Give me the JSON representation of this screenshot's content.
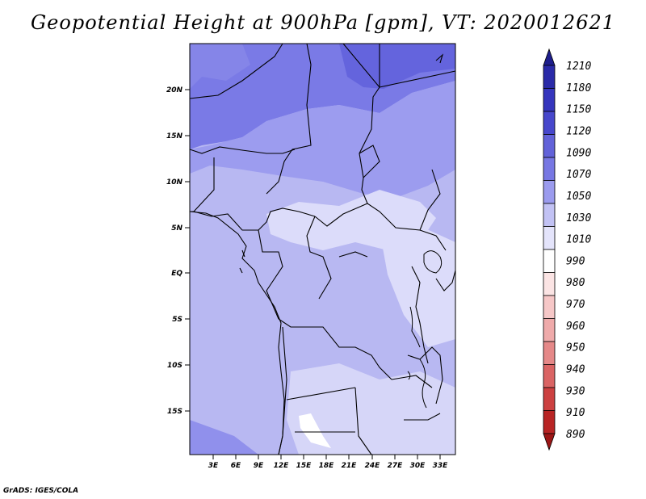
{
  "title": "Geopotential Height at 900hPa [gpm], VT: 2020012621",
  "credit": "GrADS: IGES/COLA",
  "map": {
    "lat_labels": [
      "20N",
      "15N",
      "10N",
      "5N",
      "EQ",
      "5S",
      "10S",
      "15S"
    ],
    "lon_labels": [
      "3E",
      "6E",
      "9E",
      "12E",
      "15E",
      "18E",
      "21E",
      "24E",
      "27E",
      "30E",
      "33E"
    ]
  },
  "colorbar": {
    "labels": [
      "1210",
      "1180",
      "1150",
      "1120",
      "1090",
      "1070",
      "1050",
      "1030",
      "1010",
      "990",
      "980",
      "970",
      "960",
      "950",
      "940",
      "930",
      "910",
      "890"
    ],
    "colors": [
      "#1e1e8c",
      "#2a2aa8",
      "#3535bd",
      "#4747cc",
      "#6262d9",
      "#7777e3",
      "#9b9bee",
      "#c2c2f4",
      "#e4e4fb",
      "#ffffff",
      "#fbe4e4",
      "#f6c7c7",
      "#efaaaa",
      "#e58888",
      "#da6464",
      "#cc4040",
      "#b82424",
      "#9c1616"
    ]
  }
}
